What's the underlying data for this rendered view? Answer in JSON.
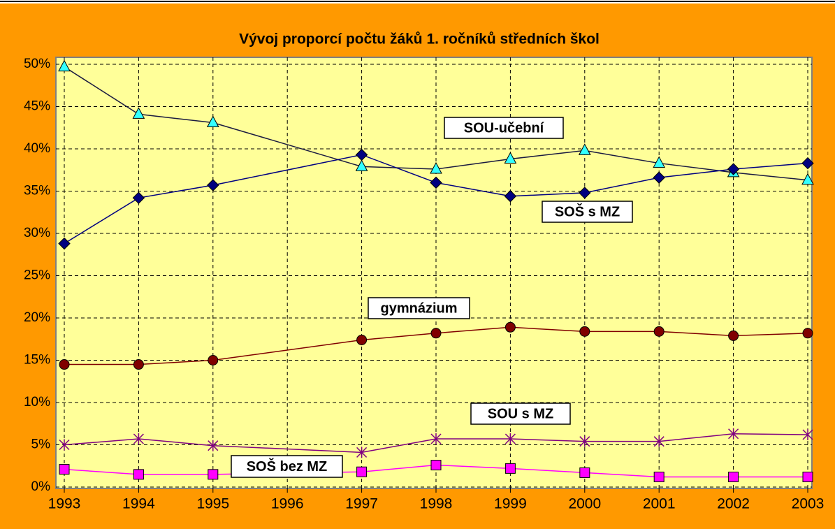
{
  "chart_data": {
    "type": "line",
    "title": "Vývoj proporcí počtu žáků 1. ročníků středních škol",
    "x": [
      1993,
      1994,
      1995,
      1997,
      1998,
      1999,
      2000,
      2001,
      2002,
      2003
    ],
    "xlim": [
      1993,
      2003
    ],
    "xticks": [
      1993,
      1994,
      1995,
      1996,
      1997,
      1998,
      1999,
      2000,
      2001,
      2002,
      2003
    ],
    "ylim": [
      0,
      50
    ],
    "yticks": [
      {
        "value": 0,
        "label": "0%"
      },
      {
        "value": 5,
        "label": "5%"
      },
      {
        "value": 10,
        "label": "10%"
      },
      {
        "value": 15,
        "label": "15%"
      },
      {
        "value": 20,
        "label": "20%"
      },
      {
        "value": 25,
        "label": "25%"
      },
      {
        "value": 30,
        "label": "30%"
      },
      {
        "value": 35,
        "label": "35%"
      },
      {
        "value": 40,
        "label": "40%"
      },
      {
        "value": 45,
        "label": "45%"
      },
      {
        "value": 50,
        "label": "50%"
      }
    ],
    "grid": true,
    "series": [
      {
        "name": "SOU-učební",
        "color": "#33ffff",
        "line_color": "#1a1a40",
        "marker": "triangle",
        "values": [
          49.7,
          44.1,
          43.1,
          37.9,
          37.6,
          38.8,
          39.8,
          38.3,
          37.2,
          36.3
        ]
      },
      {
        "name": "SOŠ s MZ",
        "color": "#000080",
        "line_color": "#000080",
        "marker": "diamond",
        "values": [
          28.8,
          34.2,
          35.7,
          39.3,
          36.0,
          34.4,
          34.8,
          36.6,
          37.6,
          38.3
        ]
      },
      {
        "name": "gymnázium",
        "color": "#800000",
        "line_color": "#800000",
        "marker": "circle",
        "values": [
          14.5,
          14.5,
          15.0,
          17.4,
          18.2,
          18.9,
          18.4,
          18.4,
          17.9,
          18.2
        ]
      },
      {
        "name": "SOU s MZ",
        "color": "#800080",
        "line_color": "#800080",
        "marker": "star",
        "values": [
          5.0,
          5.7,
          4.9,
          4.1,
          5.7,
          5.7,
          5.4,
          5.4,
          6.3,
          6.2
        ]
      },
      {
        "name": "SOŠ bez MZ",
        "color": "#ff00ff",
        "line_color": "#ff00ff",
        "marker": "square",
        "values": [
          2.1,
          1.5,
          1.5,
          1.8,
          2.6,
          2.2,
          1.7,
          1.2,
          1.2,
          1.2
        ]
      }
    ]
  }
}
